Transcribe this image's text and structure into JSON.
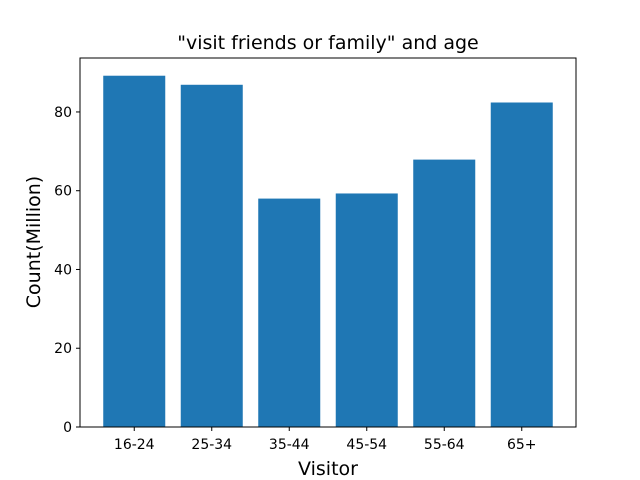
{
  "chart_data": {
    "type": "bar",
    "title": "\"visit friends or family\" and age",
    "xlabel": "Visitor",
    "ylabel": "Count(Million)",
    "categories": [
      "16-24",
      "25-34",
      "35-44",
      "45-54",
      "55-64",
      "65+"
    ],
    "values": [
      89.2,
      86.9,
      58.0,
      59.3,
      67.9,
      82.4
    ],
    "ylim": [
      0,
      93.7
    ],
    "yticks": [
      0,
      20,
      40,
      60,
      80
    ],
    "bar_color": "#1f77b4",
    "grid": false,
    "legend": "none"
  }
}
